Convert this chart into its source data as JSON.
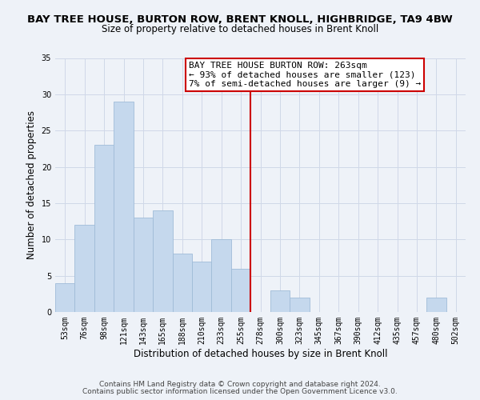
{
  "title": "BAY TREE HOUSE, BURTON ROW, BRENT KNOLL, HIGHBRIDGE, TA9 4BW",
  "subtitle": "Size of property relative to detached houses in Brent Knoll",
  "xlabel": "Distribution of detached houses by size in Brent Knoll",
  "ylabel": "Number of detached properties",
  "bin_labels": [
    "53sqm",
    "76sqm",
    "98sqm",
    "121sqm",
    "143sqm",
    "165sqm",
    "188sqm",
    "210sqm",
    "233sqm",
    "255sqm",
    "278sqm",
    "300sqm",
    "323sqm",
    "345sqm",
    "367sqm",
    "390sqm",
    "412sqm",
    "435sqm",
    "457sqm",
    "480sqm",
    "502sqm"
  ],
  "bar_values": [
    4,
    12,
    23,
    29,
    13,
    14,
    8,
    7,
    10,
    6,
    0,
    3,
    2,
    0,
    0,
    0,
    0,
    0,
    0,
    2,
    0
  ],
  "bar_color": "#c5d8ed",
  "bar_edge_color": "#a0bcd8",
  "grid_color": "#d0d8e8",
  "vline_x_index": 9.5,
  "vline_color": "#cc0000",
  "annotation_box_text_line1": "BAY TREE HOUSE BURTON ROW: 263sqm",
  "annotation_box_text_line2": "← 93% of detached houses are smaller (123)",
  "annotation_box_text_line3": "7% of semi-detached houses are larger (9) →",
  "annotation_box_edge_color": "#cc0000",
  "annotation_box_face_color": "#ffffff",
  "footer_line1": "Contains HM Land Registry data © Crown copyright and database right 2024.",
  "footer_line2": "Contains public sector information licensed under the Open Government Licence v3.0.",
  "ylim": [
    0,
    35
  ],
  "yticks": [
    0,
    5,
    10,
    15,
    20,
    25,
    30,
    35
  ],
  "background_color": "#eef2f8",
  "title_fontsize": 9.5,
  "subtitle_fontsize": 8.5,
  "axis_label_fontsize": 8.5,
  "tick_fontsize": 7.0,
  "annotation_fontsize": 8.0,
  "footer_fontsize": 6.5
}
